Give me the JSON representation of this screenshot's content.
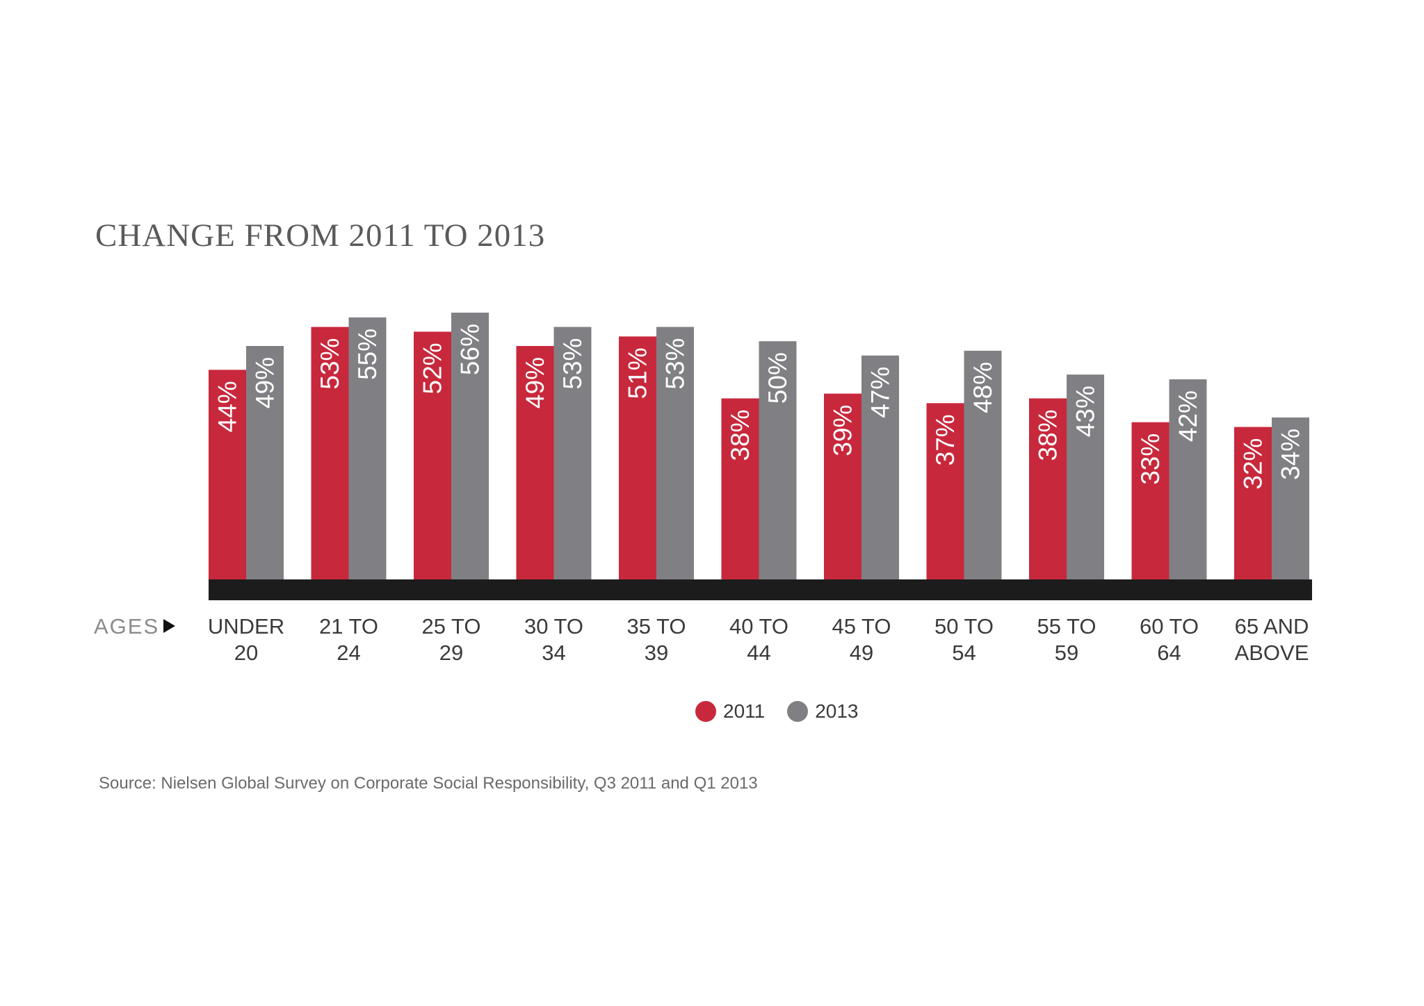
{
  "colors": {
    "series_2011": "#c8283c",
    "series_2013": "#808084",
    "axis_band": "#1c1c1c"
  },
  "axis_prefix": "AGES",
  "source": "Source: Nielsen Global Survey on Corporate Social Responsibility, Q3 2011 and Q1 2013",
  "chart_data": {
    "type": "bar",
    "title": "CHANGE FROM 2011 TO 2013",
    "xlabel": "AGES",
    "ylabel": "",
    "ylim": [
      0,
      56
    ],
    "grid": false,
    "legend_position": "bottom-center",
    "categories": [
      [
        "UNDER",
        "20"
      ],
      [
        "21 TO",
        "24"
      ],
      [
        "25 TO",
        "29"
      ],
      [
        "30 TO",
        "34"
      ],
      [
        "35 TO",
        "39"
      ],
      [
        "40 TO",
        "44"
      ],
      [
        "45 TO",
        "49"
      ],
      [
        "50 TO",
        "54"
      ],
      [
        "55 TO",
        "59"
      ],
      [
        "60 TO",
        "64"
      ],
      [
        "65 AND",
        "ABOVE"
      ]
    ],
    "series": [
      {
        "name": "2011",
        "values": [
          44,
          53,
          52,
          49,
          51,
          38,
          39,
          37,
          38,
          33,
          32
        ]
      },
      {
        "name": "2013",
        "values": [
          49,
          55,
          56,
          53,
          53,
          50,
          47,
          48,
          43,
          42,
          34
        ]
      }
    ],
    "value_suffix": "%"
  }
}
